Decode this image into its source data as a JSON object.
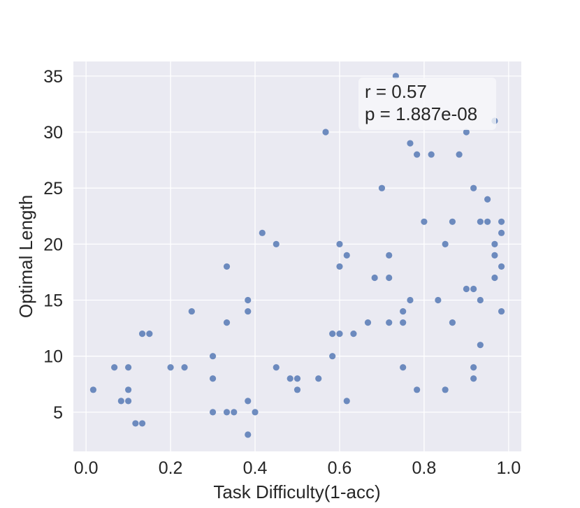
{
  "chart_data": {
    "type": "scatter",
    "xlabel": "Task Difficulty(1-acc)",
    "ylabel": "Optimal Length",
    "xlim": [
      -0.03,
      1.03
    ],
    "ylim": [
      1.5,
      36.3
    ],
    "xticks": [
      0.0,
      0.2,
      0.4,
      0.6,
      0.8,
      1.0
    ],
    "xtick_labels": [
      "0.0",
      "0.2",
      "0.4",
      "0.6",
      "0.8",
      "1.0"
    ],
    "yticks": [
      5,
      10,
      15,
      20,
      25,
      30,
      35
    ],
    "ytick_labels": [
      "5",
      "10",
      "15",
      "20",
      "25",
      "30",
      "35"
    ],
    "grid": true,
    "point_color": "#4C72B0",
    "background_color": "#EAEAF2",
    "annotation": {
      "r_line": "r = 0.57",
      "p_line": "p = 1.887e-08"
    },
    "points": [
      {
        "x": 0.017,
        "y": 7
      },
      {
        "x": 0.067,
        "y": 9
      },
      {
        "x": 0.083,
        "y": 6
      },
      {
        "x": 0.1,
        "y": 9
      },
      {
        "x": 0.1,
        "y": 7
      },
      {
        "x": 0.1,
        "y": 6
      },
      {
        "x": 0.117,
        "y": 4
      },
      {
        "x": 0.133,
        "y": 4
      },
      {
        "x": 0.133,
        "y": 12
      },
      {
        "x": 0.15,
        "y": 12
      },
      {
        "x": 0.2,
        "y": 9
      },
      {
        "x": 0.233,
        "y": 9
      },
      {
        "x": 0.25,
        "y": 14
      },
      {
        "x": 0.3,
        "y": 10
      },
      {
        "x": 0.3,
        "y": 8
      },
      {
        "x": 0.3,
        "y": 5
      },
      {
        "x": 0.333,
        "y": 18
      },
      {
        "x": 0.333,
        "y": 13
      },
      {
        "x": 0.333,
        "y": 5
      },
      {
        "x": 0.35,
        "y": 5
      },
      {
        "x": 0.383,
        "y": 15
      },
      {
        "x": 0.383,
        "y": 14
      },
      {
        "x": 0.383,
        "y": 6
      },
      {
        "x": 0.383,
        "y": 3
      },
      {
        "x": 0.4,
        "y": 5
      },
      {
        "x": 0.417,
        "y": 21
      },
      {
        "x": 0.45,
        "y": 20
      },
      {
        "x": 0.45,
        "y": 9
      },
      {
        "x": 0.483,
        "y": 8
      },
      {
        "x": 0.5,
        "y": 8
      },
      {
        "x": 0.5,
        "y": 7
      },
      {
        "x": 0.55,
        "y": 8
      },
      {
        "x": 0.567,
        "y": 30
      },
      {
        "x": 0.583,
        "y": 12
      },
      {
        "x": 0.583,
        "y": 10
      },
      {
        "x": 0.6,
        "y": 20
      },
      {
        "x": 0.6,
        "y": 18
      },
      {
        "x": 0.6,
        "y": 12
      },
      {
        "x": 0.617,
        "y": 19
      },
      {
        "x": 0.617,
        "y": 6
      },
      {
        "x": 0.633,
        "y": 12
      },
      {
        "x": 0.667,
        "y": 13
      },
      {
        "x": 0.683,
        "y": 17
      },
      {
        "x": 0.7,
        "y": 25
      },
      {
        "x": 0.717,
        "y": 19
      },
      {
        "x": 0.717,
        "y": 17
      },
      {
        "x": 0.717,
        "y": 13
      },
      {
        "x": 0.733,
        "y": 35
      },
      {
        "x": 0.75,
        "y": 14
      },
      {
        "x": 0.75,
        "y": 13
      },
      {
        "x": 0.75,
        "y": 9
      },
      {
        "x": 0.767,
        "y": 29
      },
      {
        "x": 0.767,
        "y": 15
      },
      {
        "x": 0.783,
        "y": 28
      },
      {
        "x": 0.783,
        "y": 7
      },
      {
        "x": 0.8,
        "y": 22
      },
      {
        "x": 0.817,
        "y": 28
      },
      {
        "x": 0.833,
        "y": 15
      },
      {
        "x": 0.85,
        "y": 20
      },
      {
        "x": 0.85,
        "y": 7
      },
      {
        "x": 0.867,
        "y": 22
      },
      {
        "x": 0.867,
        "y": 13
      },
      {
        "x": 0.883,
        "y": 28
      },
      {
        "x": 0.9,
        "y": 30
      },
      {
        "x": 0.9,
        "y": 16
      },
      {
        "x": 0.917,
        "y": 25
      },
      {
        "x": 0.917,
        "y": 16
      },
      {
        "x": 0.917,
        "y": 9
      },
      {
        "x": 0.917,
        "y": 8
      },
      {
        "x": 0.933,
        "y": 22
      },
      {
        "x": 0.933,
        "y": 15
      },
      {
        "x": 0.933,
        "y": 11
      },
      {
        "x": 0.95,
        "y": 24
      },
      {
        "x": 0.95,
        "y": 22
      },
      {
        "x": 0.967,
        "y": 31
      },
      {
        "x": 0.967,
        "y": 20
      },
      {
        "x": 0.967,
        "y": 19
      },
      {
        "x": 0.967,
        "y": 17
      },
      {
        "x": 0.983,
        "y": 22
      },
      {
        "x": 0.983,
        "y": 21
      },
      {
        "x": 0.983,
        "y": 18
      },
      {
        "x": 0.983,
        "y": 14
      }
    ]
  }
}
